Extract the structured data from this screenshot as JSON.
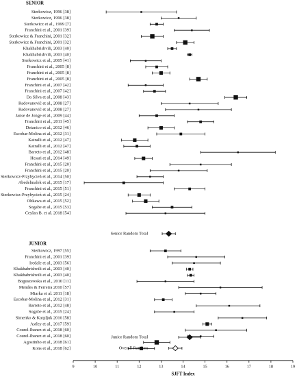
{
  "chart_data": {
    "type": "forest",
    "xlabel": "SJFT Index",
    "xlim": [
      9,
      19
    ],
    "xticks": [
      9,
      10,
      11,
      12,
      13,
      14,
      15,
      16,
      17,
      18,
      19
    ],
    "groups": [
      {
        "name": "SENIOR",
        "studies": [
          {
            "label": "Sterkowicz, 1996 [38]",
            "mean": 12.1,
            "lo": 10.5,
            "hi": 13.7,
            "w": 1
          },
          {
            "label": "Sterkowicz, 1996 [38]",
            "mean": 13.8,
            "lo": 13.0,
            "hi": 14.6,
            "w": 1
          },
          {
            "label": "Sterkowicz et al., 1999 [7]",
            "mean": 12.8,
            "lo": 12.5,
            "hi": 13.1,
            "w": 2
          },
          {
            "label": "Franchini et al., 2001 [39]",
            "mean": 14.4,
            "lo": 13.6,
            "hi": 15.2,
            "w": 1
          },
          {
            "label": "Sterkowicz & Franchini, 2001 [32]",
            "mean": 12.6,
            "lo": 12.1,
            "hi": 13.1,
            "w": 4
          },
          {
            "label": "Sterkowicz & Franchini, 2001 [32]",
            "mean": 14.1,
            "lo": 13.7,
            "hi": 14.5,
            "w": 4
          },
          {
            "label": "Khakhabrishvili, 2003 [40]",
            "mean": 13.5,
            "lo": 13.3,
            "hi": 13.7,
            "w": 2
          },
          {
            "label": "Khakhabrishvili, 2003 [40]",
            "mean": 14.3,
            "lo": 14.2,
            "hi": 14.4,
            "w": 2
          },
          {
            "label": "Sterkowicz et al., 2005 [41]",
            "mean": 12.3,
            "lo": 11.6,
            "hi": 13.0,
            "w": 1
          },
          {
            "label": "Franchini et al., 2005 [8]",
            "mean": 12.8,
            "lo": 12.3,
            "hi": 13.3,
            "w": 2
          },
          {
            "label": "Franchini et al., 2005 [8]",
            "mean": 13.0,
            "lo": 12.6,
            "hi": 13.4,
            "w": 3
          },
          {
            "label": "Franchini et al., 2005 [8]",
            "mean": 14.7,
            "lo": 14.3,
            "hi": 15.1,
            "w": 4
          },
          {
            "label": "Franchini et al., 2007 [42]",
            "mean": 12.3,
            "lo": 11.5,
            "hi": 13.1,
            "w": 1
          },
          {
            "label": "Franchini et al., 2007 [42]",
            "mean": 12.7,
            "lo": 12.2,
            "hi": 13.2,
            "w": 2
          },
          {
            "label": "Da Silva et al., 2008 [43]",
            "mean": 16.4,
            "lo": 15.9,
            "hi": 16.9,
            "w": 4
          },
          {
            "label": "Radovanović et al., 2008 [27]",
            "mean": 14.3,
            "lo": 13.0,
            "hi": 15.6,
            "w": 1
          },
          {
            "label": "Radovanović et al., 2008 [27]",
            "mean": 14.7,
            "lo": 13.2,
            "hi": 16.2,
            "w": 1
          },
          {
            "label": "Janse de Jonge et al., 2009 [44]",
            "mean": 12.8,
            "lo": 12.0,
            "hi": 13.6,
            "w": 2
          },
          {
            "label": "Franchini et al., 2011 [45]",
            "mean": 14.8,
            "lo": 14.2,
            "hi": 15.4,
            "w": 2
          },
          {
            "label": "Detanico et al., 2012 [46]",
            "mean": 13.0,
            "lo": 12.4,
            "hi": 13.6,
            "w": 3
          },
          {
            "label": "Escobar-Molina et al., 2012 [31]",
            "mean": 13.9,
            "lo": 12.8,
            "hi": 15.0,
            "w": 2
          },
          {
            "label": "Katralli et al., 2012 [47]",
            "mean": 11.8,
            "lo": 11.2,
            "hi": 12.4,
            "w": 3
          },
          {
            "label": "Katralli et al., 2012 [47]",
            "mean": 11.9,
            "lo": 11.3,
            "hi": 12.5,
            "w": 2
          },
          {
            "label": "Barreto et al., 2012 [48]",
            "mean": 16.5,
            "lo": 14.8,
            "hi": 18.2,
            "w": 1
          },
          {
            "label": "Hesari et al., 2014 [49]",
            "mean": 12.2,
            "lo": 11.8,
            "hi": 12.6,
            "w": 3
          },
          {
            "label": "Franchini et al., 2015 [20]",
            "mean": 14.8,
            "lo": 13.4,
            "hi": 16.2,
            "w": 1
          },
          {
            "label": "Franchini et al., 2015 [20]",
            "mean": 13.8,
            "lo": 12.5,
            "hi": 15.1,
            "w": 1
          },
          {
            "label": "Sterkowicz-Przybycień et al., 2014 [50]",
            "mean": 12.5,
            "lo": 11.9,
            "hi": 13.1,
            "w": 1
          },
          {
            "label": "Abedelmalek et al., 2015 [17]",
            "mean": 11.3,
            "lo": 9.5,
            "hi": 13.1,
            "w": 2
          },
          {
            "label": "Franchini et al., 2015 [51]",
            "mean": 14.3,
            "lo": 13.6,
            "hi": 15.0,
            "w": 2
          },
          {
            "label": "Sterkowicz-Przybycień et al., 2015 [24]",
            "mean": 12.0,
            "lo": 11.5,
            "hi": 12.5,
            "w": 3
          },
          {
            "label": "Ohkawa et al., 2015 [52]",
            "mean": 12.3,
            "lo": 11.7,
            "hi": 12.9,
            "w": 3
          },
          {
            "label": "Sogabe et al., 2015 [53]",
            "mean": 13.5,
            "lo": 12.6,
            "hi": 14.4,
            "w": 2
          },
          {
            "label": "Ceylan B. et al. 2018 [54]",
            "mean": 13.2,
            "lo": 11.4,
            "hi": 15.0,
            "w": 1
          }
        ],
        "total": {
          "label": "Senior Random Total",
          "mean": 13.35,
          "lo": 13.05,
          "hi": 13.65
        }
      },
      {
        "name": "JUNIOR",
        "studies": [
          {
            "label": "Sterkowicz, 1997 [55]",
            "mean": 13.2,
            "lo": 12.5,
            "hi": 13.9,
            "w": 2
          },
          {
            "label": "Franchini et al., 2001 [39]",
            "mean": 14.6,
            "lo": 13.3,
            "hi": 15.9,
            "w": 1
          },
          {
            "label": "Iredale et al., 2003 [56]",
            "mean": 14.5,
            "lo": 13.5,
            "hi": 15.7,
            "w": 1
          },
          {
            "label": "Khakhabrishvili et al., 2003 [40]",
            "mean": 14.3,
            "lo": 14.15,
            "hi": 14.45,
            "w": 2
          },
          {
            "label": "Khakhabrishvili et al., 2003 [40]",
            "mean": 14.35,
            "lo": 14.2,
            "hi": 14.5,
            "w": 2
          },
          {
            "label": "Boguszewska et al., 2010 [11]",
            "mean": 13.2,
            "lo": 11.9,
            "hi": 14.5,
            "w": 1
          },
          {
            "label": "Mendes & Ferreira 2010 [57]",
            "mean": 15.7,
            "lo": 13.8,
            "hi": 17.6,
            "w": 1
          },
          {
            "label": "Miarka et al. 2011 [18]",
            "mean": 14.8,
            "lo": 14.1,
            "hi": 15.5,
            "w": 1
          },
          {
            "label": "Escobar-Molina et al., 2012 [31]",
            "mean": 13.1,
            "lo": 12.7,
            "hi": 13.5,
            "w": 2
          },
          {
            "label": "Barreto et al., 2012 [48]",
            "mean": 16.1,
            "lo": 14.6,
            "hi": 17.5,
            "w": 1
          },
          {
            "label": "Sogabe et al., 2015 [24]",
            "mean": 13.6,
            "lo": 12.7,
            "hi": 14.5,
            "w": 1
          },
          {
            "label": "Simenko & Karpljuk 2016 [58]",
            "mean": 16.7,
            "lo": 15.6,
            "hi": 17.8,
            "w": 1
          },
          {
            "label": "Astley et al., 2017 [59]",
            "mean": 15.1,
            "lo": 14.9,
            "hi": 15.3,
            "w": 3
          },
          {
            "label": "Courel-Ibanez et al., 2018 [60]",
            "mean": 15.5,
            "lo": 14.1,
            "hi": 16.9,
            "w": 1
          },
          {
            "label": "Courel-Ibanez et al., 2018 [60]",
            "mean": 14.8,
            "lo": 14.2,
            "hi": 15.4,
            "w": 1
          },
          {
            "label": "Agostinho et al., 2018 [61]",
            "mean": 12.8,
            "lo": 12.2,
            "hi": 13.4,
            "w": 4
          },
          {
            "label": "Kons et al., 2018 [62]",
            "mean": 12.1,
            "lo": 11.5,
            "hi": 12.7,
            "w": 3
          }
        ],
        "total": {
          "label": "Junior Random Total",
          "mean": 14.3,
          "lo": 13.8,
          "hi": 14.8
        }
      }
    ],
    "overall": {
      "label": "Overall Random",
      "mean": 13.65,
      "lo": 13.35,
      "hi": 13.95
    }
  }
}
